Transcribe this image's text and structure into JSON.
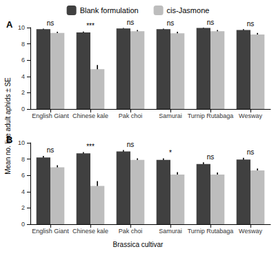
{
  "chart_data": {
    "type": "bar",
    "legend": "top",
    "grid": false,
    "y_label": "Mean no. live adult aphids ± SE",
    "x_label": "Brassica cultivar",
    "panels": [
      {
        "title": "A",
        "categories": [
          "English Giant",
          "Chinese kale",
          "Pak choi",
          "Samurai",
          "Turnip Rutabaga",
          "Wesway"
        ],
        "ylim": [
          0,
          10
        ],
        "yticks": [
          0,
          2,
          4,
          6,
          8,
          10
        ],
        "annotations": [
          "ns",
          "***",
          "ns",
          "ns",
          "ns",
          "ns"
        ],
        "series": [
          {
            "name": "Blank formulation",
            "color": "#404040",
            "values": [
              9.8,
              9.4,
              9.9,
              9.8,
              9.95,
              9.7
            ],
            "errors": [
              0.08,
              0.12,
              0.05,
              0.08,
              0.05,
              0.1
            ]
          },
          {
            "name": "cis-Jasmone",
            "color": "#bdbdbd",
            "values": [
              9.35,
              4.9,
              9.55,
              9.3,
              9.55,
              9.15
            ],
            "errors": [
              0.15,
              0.5,
              0.15,
              0.2,
              0.15,
              0.2
            ]
          }
        ]
      },
      {
        "title": "B",
        "categories": [
          "English Giant",
          "Chinese kale",
          "Pak choi",
          "Samurai",
          "Turnip Rutabaga",
          "Wesway"
        ],
        "ylim": [
          0,
          10
        ],
        "yticks": [
          0,
          2,
          4,
          6,
          8,
          10
        ],
        "annotations": [
          "ns",
          "***",
          "ns",
          "*",
          "ns",
          "ns"
        ],
        "series": [
          {
            "name": "Blank formulation",
            "color": "#404040",
            "values": [
              8.2,
              8.7,
              8.95,
              7.9,
              7.4,
              7.95
            ],
            "errors": [
              0.2,
              0.15,
              0.15,
              0.2,
              0.2,
              0.2
            ]
          },
          {
            "name": "cis-Jasmone",
            "color": "#bdbdbd",
            "values": [
              7.0,
              4.7,
              7.9,
              6.1,
              6.1,
              6.6
            ],
            "errors": [
              0.25,
              0.6,
              0.2,
              0.3,
              0.25,
              0.25
            ]
          }
        ]
      }
    ]
  }
}
